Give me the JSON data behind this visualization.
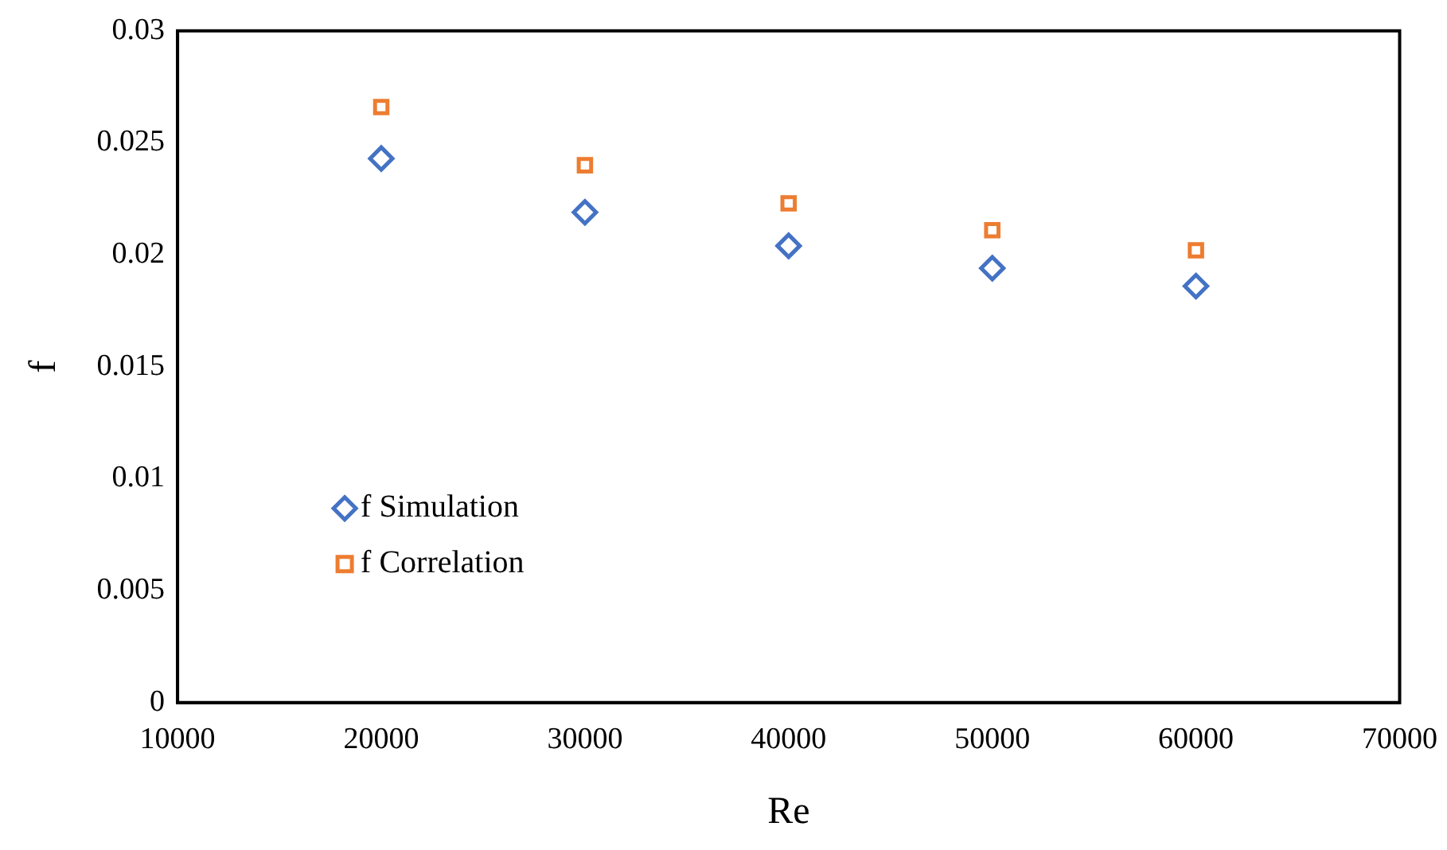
{
  "chart_data": {
    "type": "scatter",
    "xlabel": "Re",
    "ylabel": "f",
    "xlim": [
      10000,
      70000
    ],
    "xticks": [
      10000,
      20000,
      30000,
      40000,
      50000,
      60000,
      70000
    ],
    "ylim": [
      0,
      0.03
    ],
    "yticks": [
      0,
      0.005,
      0.01,
      0.015,
      0.02,
      0.025,
      0.03
    ],
    "grid": false,
    "legend": "bottom left",
    "x": [
      20000,
      30000,
      40000,
      50000,
      60000
    ],
    "series": [
      {
        "name": "f Simulation",
        "color": "#4472c4",
        "marker": "diamond",
        "values": [
          0.0243,
          0.0219,
          0.0204,
          0.0194,
          0.0186
        ]
      },
      {
        "name": "f Correlation",
        "color": "#ed7d31",
        "marker": "square",
        "values": [
          0.0266,
          0.024,
          0.0223,
          0.0211,
          0.0202
        ]
      }
    ]
  }
}
